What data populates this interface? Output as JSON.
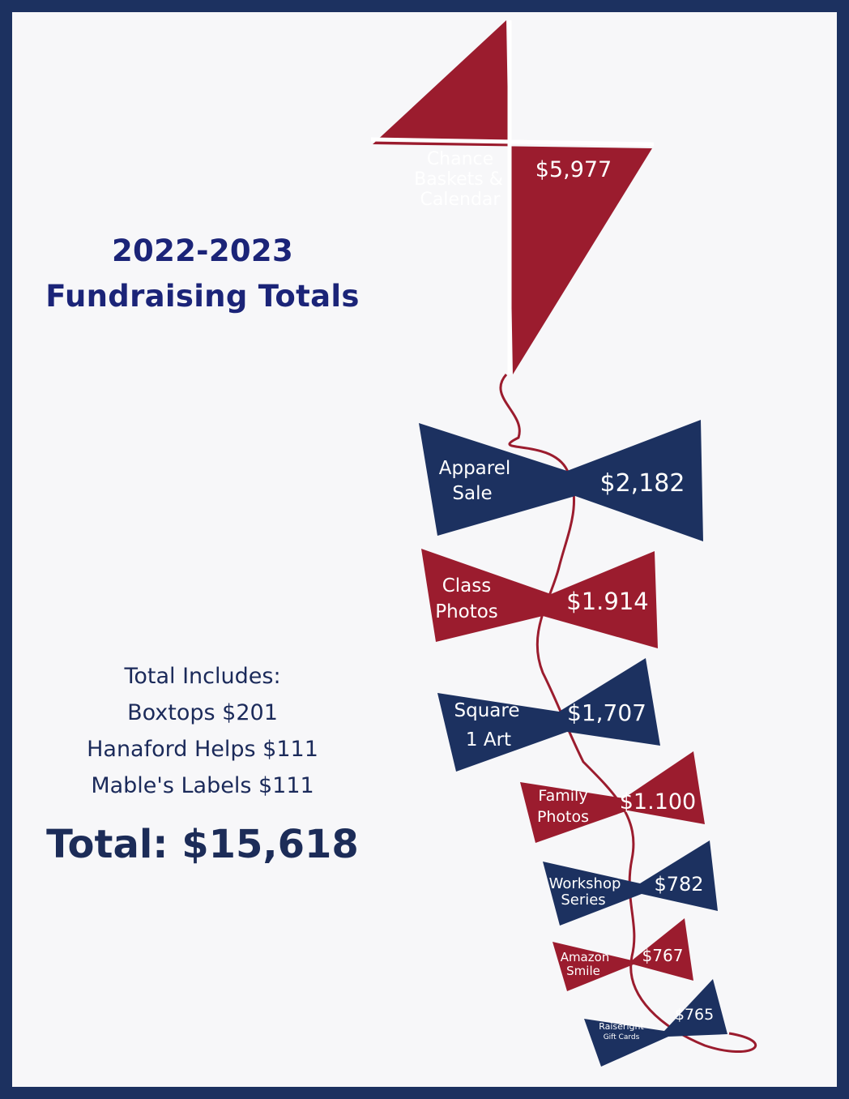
{
  "title": {
    "line1": "2022-2023",
    "line2": "Fundraising Totals"
  },
  "includes": {
    "heading": "Total Includes:",
    "items": [
      "Boxtops $201",
      "Hanaford Helps $111",
      "Mable's Labels $111"
    ]
  },
  "total": "Total: $15,618",
  "kite": {
    "label": [
      "Chance",
      "Baskets  &",
      "Calendar"
    ],
    "amount": "$5,977"
  },
  "bows": [
    {
      "label": [
        "Apparel",
        "Sale"
      ],
      "amount": "$2,182"
    },
    {
      "label": [
        "Class",
        "Photos"
      ],
      "amount": "$1.914"
    },
    {
      "label": [
        "Square",
        "1 Art"
      ],
      "amount": "$1,707"
    },
    {
      "label": [
        "Family",
        "Photos"
      ],
      "amount": "$1.100"
    },
    {
      "label": [
        "Workshop",
        "Series"
      ],
      "amount": "$782"
    },
    {
      "label": [
        "Amazon",
        "Smile"
      ],
      "amount": "$767"
    },
    {
      "label": [
        "Raiseright",
        "Gift Cards"
      ],
      "amount": "$765"
    }
  ],
  "colors": {
    "navy": "#1c3160",
    "red": "#9b1c2e",
    "title": "#1b2478"
  }
}
